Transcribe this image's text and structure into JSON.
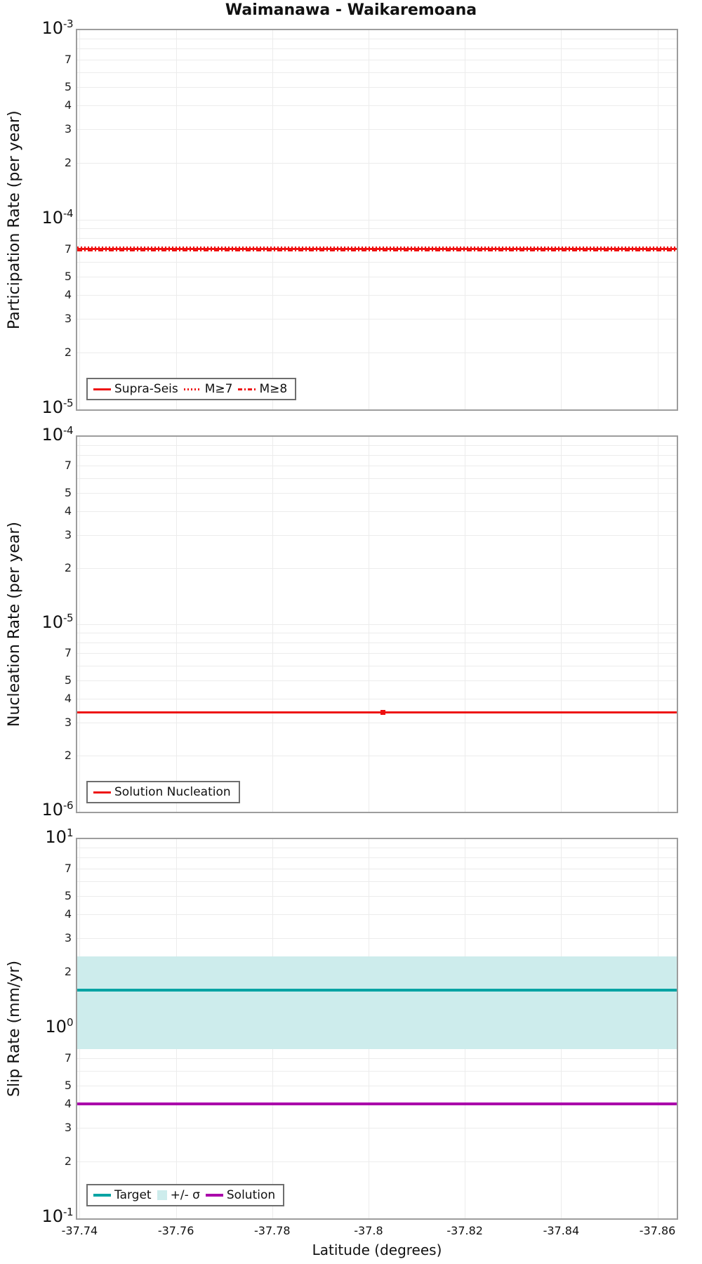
{
  "title": "Waimanawa - Waikaremoana",
  "xlabel": "Latitude (degrees)",
  "colors": {
    "red": "#ee1111",
    "teal": "#00a3a3",
    "band": "#cdecec",
    "purple": "#aa00aa",
    "grid": "#ececec",
    "axis": "#9d9d9d"
  },
  "chart_data": [
    {
      "type": "line",
      "title": "Waimanawa - Waikaremoana",
      "xlabel": "Latitude (degrees)",
      "ylabel": "Participation Rate (per year)",
      "yscale": "log",
      "ylim": [
        1e-05,
        0.001
      ],
      "x_range": [
        -37.74,
        -37.86
      ],
      "x_reversed": true,
      "x_ticks": [
        -37.74,
        -37.76,
        -37.78,
        -37.8,
        -37.82,
        -37.84,
        -37.86
      ],
      "x_tick_labels": [
        "-37.74",
        "-37.76",
        "-37.78",
        "-37.8",
        "-37.82",
        "-37.84",
        "-37.86"
      ],
      "y_minor_tick_labels": [
        7,
        5,
        4,
        3,
        2
      ],
      "grid": true,
      "legend_position": "bottom-left",
      "series": [
        {
          "name": "Supra-Seis",
          "style": "solid",
          "color": "#ee1111",
          "value": 7e-05
        },
        {
          "name": "M≥7",
          "style": "dotted",
          "color": "#ee1111",
          "value": 7e-05
        },
        {
          "name": "M≥8",
          "style": "dashdot",
          "color": "#ee1111",
          "value": 7e-05
        }
      ]
    },
    {
      "type": "line",
      "ylabel": "Nucleation Rate (per year)",
      "yscale": "log",
      "ylim": [
        1e-06,
        0.0001
      ],
      "y_minor_tick_labels": [
        7,
        5,
        4,
        3,
        2
      ],
      "grid": true,
      "legend_position": "bottom-left",
      "series": [
        {
          "name": "Solution Nucleation",
          "style": "solid",
          "color": "#ee1111",
          "value": 3.4e-06,
          "marker_x": -37.803
        }
      ]
    },
    {
      "type": "line+band",
      "ylabel": "Slip Rate (mm/yr)",
      "yscale": "log",
      "ylim": [
        0.1,
        10
      ],
      "y_minor_tick_labels": [
        7,
        5,
        4,
        3,
        2
      ],
      "grid": true,
      "legend_position": "bottom-left",
      "band": {
        "name": "+/- σ",
        "low": 0.78,
        "high": 2.4,
        "color": "#cdecec"
      },
      "series": [
        {
          "name": "Target",
          "style": "solid",
          "color": "#00a3a3",
          "value": 1.6
        },
        {
          "name": "Solution",
          "style": "solid",
          "color": "#aa00aa",
          "value": 0.4
        }
      ]
    }
  ]
}
